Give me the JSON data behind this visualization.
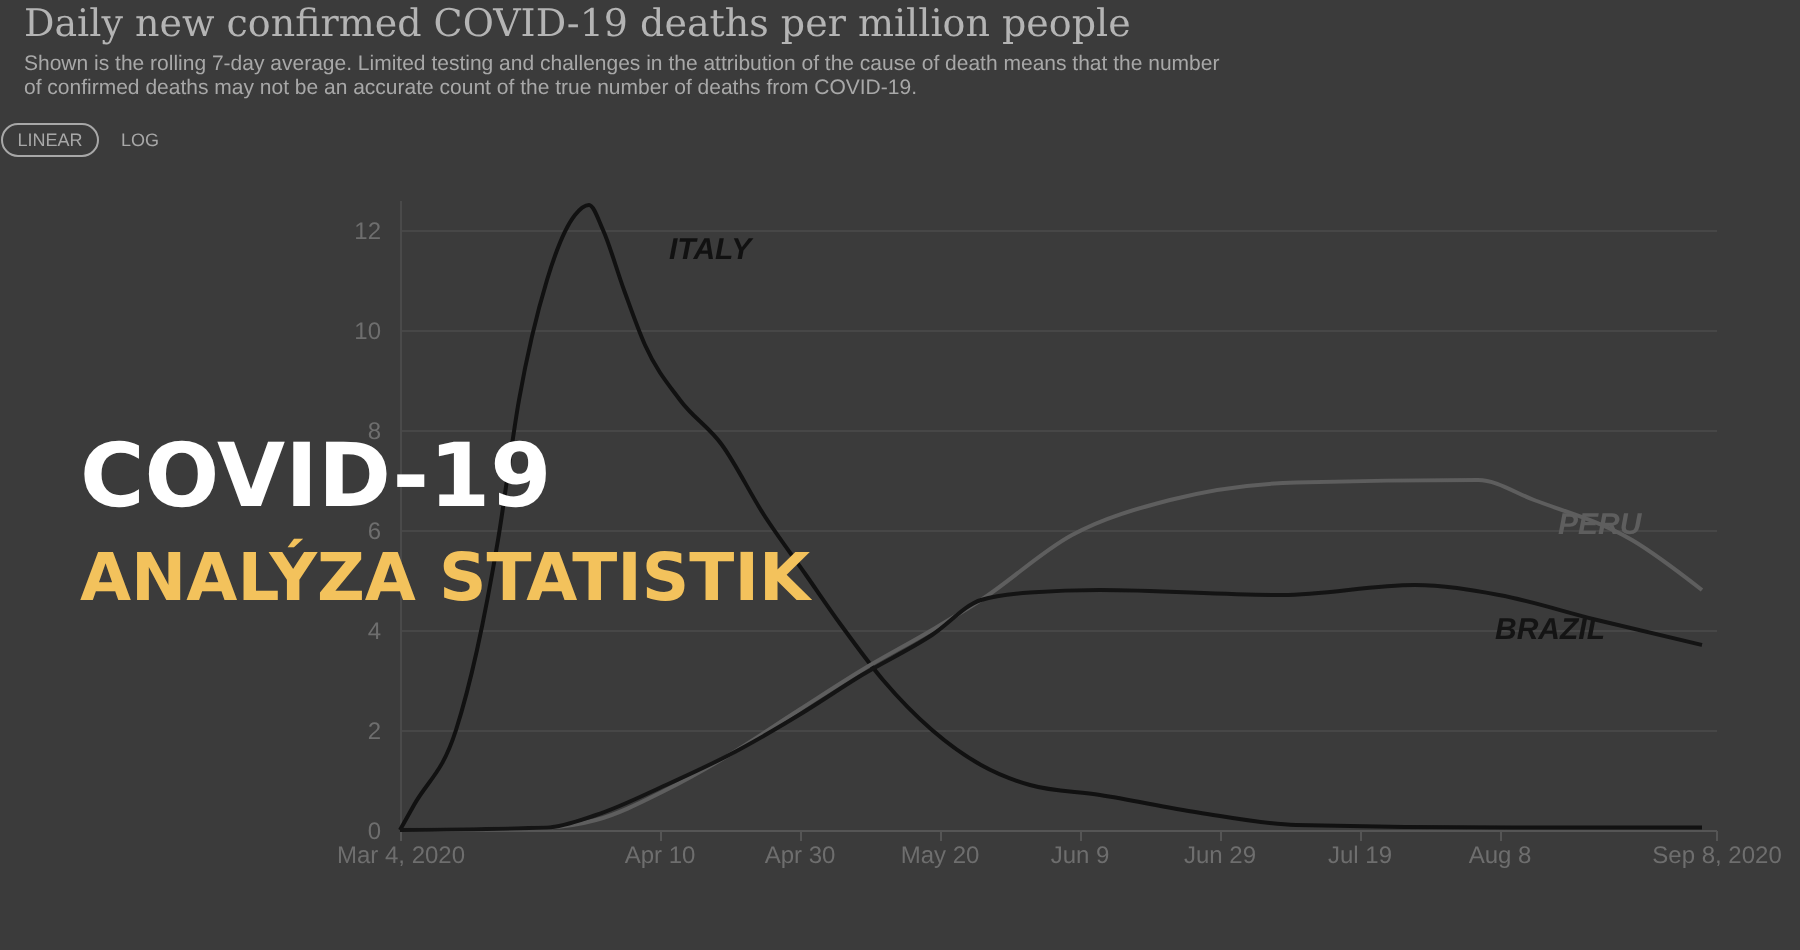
{
  "chart_data": {
    "type": "line",
    "title": "Daily new confirmed COVID-19 deaths per million people",
    "subtitle": "Shown is the rolling 7-day average. Limited testing and challenges in the attribution of the cause of death means that the number of confirmed deaths may not be an accurate count of the true number of deaths from COVID-19.",
    "annotations": [
      "LINEAR",
      "LOG",
      "COVID-19",
      "ANALÝZA STATISTIK"
    ],
    "series": [
      {
        "name": "ITALY",
        "color": "#111111",
        "x": [
          "2020-03-04",
          "2020-03-06",
          "2020-03-12",
          "2020-03-15",
          "2020-03-18",
          "2020-03-21",
          "2020-03-25",
          "2020-03-29",
          "2020-03-31",
          "2020-04-02",
          "2020-04-05",
          "2020-04-08",
          "2020-04-13",
          "2020-04-19",
          "2020-04-25",
          "2020-05-01",
          "2020-05-06",
          "2020-05-12",
          "2020-05-19",
          "2020-05-26",
          "2020-06-02",
          "2020-06-12",
          "2020-06-26",
          "2020-07-10",
          "2020-08-10",
          "2020-09-06"
        ],
        "values": [
          0,
          0.5,
          2.0,
          3.6,
          5.8,
          8.6,
          11.0,
          12.3,
          12.5,
          12.0,
          10.8,
          9.7,
          8.6,
          7.7,
          6.3,
          5.1,
          4.1,
          3.0,
          2.0,
          1.3,
          0.9,
          0.7,
          0.35,
          0.1,
          0.05,
          0.05
        ]
      },
      {
        "name": "PERU",
        "color": "#5e5e5e",
        "x": [
          "2020-03-04",
          "2020-03-25",
          "2020-04-01",
          "2020-04-11",
          "2020-04-20",
          "2020-04-30",
          "2020-05-09",
          "2020-05-19",
          "2020-05-26",
          "2020-06-08",
          "2020-06-22",
          "2020-07-10",
          "2020-08-05",
          "2020-08-13",
          "2020-08-27",
          "2020-09-06"
        ],
        "values": [
          0,
          0.05,
          0.2,
          0.8,
          1.5,
          2.4,
          3.2,
          4.0,
          4.6,
          5.9,
          6.6,
          6.95,
          7.0,
          6.6,
          5.8,
          4.8
        ]
      },
      {
        "name": "BRAZIL",
        "color": "#141414",
        "x": [
          "2020-03-04",
          "2020-03-25",
          "2020-04-01",
          "2020-04-11",
          "2020-04-20",
          "2020-04-30",
          "2020-05-09",
          "2020-05-19",
          "2020-05-26",
          "2020-06-02",
          "2020-06-12",
          "2020-07-08",
          "2020-07-27",
          "2020-08-08",
          "2020-08-22",
          "2020-09-06"
        ],
        "values": [
          0,
          0.05,
          0.3,
          0.9,
          1.5,
          2.3,
          3.1,
          3.9,
          4.6,
          4.75,
          4.8,
          4.7,
          4.9,
          4.7,
          4.2,
          3.7
        ]
      }
    ],
    "xlim": [
      "2020-03-04",
      "2020-09-08"
    ],
    "xticks": [
      {
        "value": "2020-03-04",
        "label": "Mar 4, 2020"
      },
      {
        "value": "2020-04-10",
        "label": "Apr 10"
      },
      {
        "value": "2020-04-30",
        "label": "Apr 30"
      },
      {
        "value": "2020-05-20",
        "label": "May 20"
      },
      {
        "value": "2020-06-09",
        "label": "Jun 9"
      },
      {
        "value": "2020-06-29",
        "label": "Jun 29"
      },
      {
        "value": "2020-07-19",
        "label": "Jul 19"
      },
      {
        "value": "2020-08-08",
        "label": "Aug 8"
      },
      {
        "value": "2020-09-08",
        "label": "Sep 8, 2020"
      }
    ],
    "ylim": [
      0,
      12.6
    ],
    "yticks": [
      0,
      2,
      4,
      6,
      8,
      10,
      12
    ],
    "grid": "y",
    "legend": false,
    "marker": "none",
    "line_style": "solid"
  }
}
